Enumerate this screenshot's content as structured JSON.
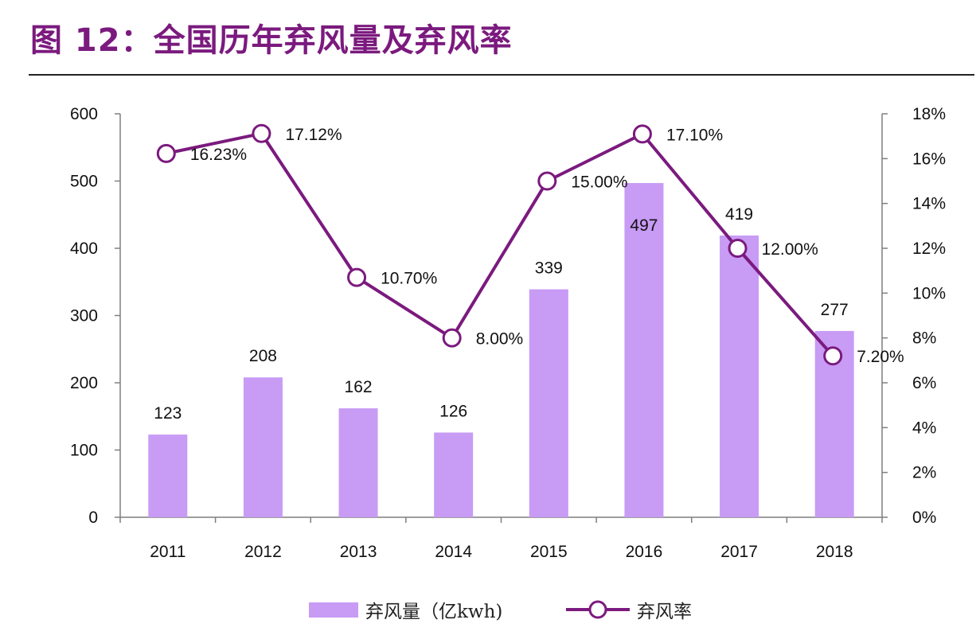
{
  "page": {
    "title": "图 12：全国历年弃风量及弃风率"
  },
  "colors": {
    "title": "#7b1a7e",
    "bar": "#c89bf5",
    "line": "#7b1a7e",
    "axis": "#7f7f7f"
  },
  "chart_data": {
    "type": "bar+line",
    "categories": [
      "2011",
      "2012",
      "2013",
      "2014",
      "2015",
      "2016",
      "2017",
      "2018"
    ],
    "series": [
      {
        "name": "弃风量（亿kwh)",
        "type": "bar",
        "axis": "left",
        "values": [
          123,
          208,
          162,
          126,
          339,
          497,
          419,
          277
        ],
        "labels": [
          "123",
          "208",
          "162",
          "126",
          "339",
          "497",
          "419",
          "277"
        ]
      },
      {
        "name": "弃风率",
        "type": "line",
        "axis": "right",
        "values": [
          16.23,
          17.12,
          10.7,
          8.0,
          15.0,
          17.1,
          12.0,
          7.2
        ],
        "labels": [
          "16.23%",
          "17.12%",
          "10.70%",
          "8.00%",
          "15.00%",
          "17.10%",
          "12.00%",
          "7.20%"
        ]
      }
    ],
    "y_left": {
      "ylim": [
        0,
        600
      ],
      "ticks": [
        "0",
        "100",
        "200",
        "300",
        "400",
        "500",
        "600"
      ]
    },
    "y_right": {
      "ylim": [
        0,
        18
      ],
      "ticks": [
        "0%",
        "2%",
        "4%",
        "6%",
        "8%",
        "10%",
        "12%",
        "14%",
        "16%",
        "18%"
      ]
    },
    "grid": false,
    "legend_position": "bottom"
  }
}
